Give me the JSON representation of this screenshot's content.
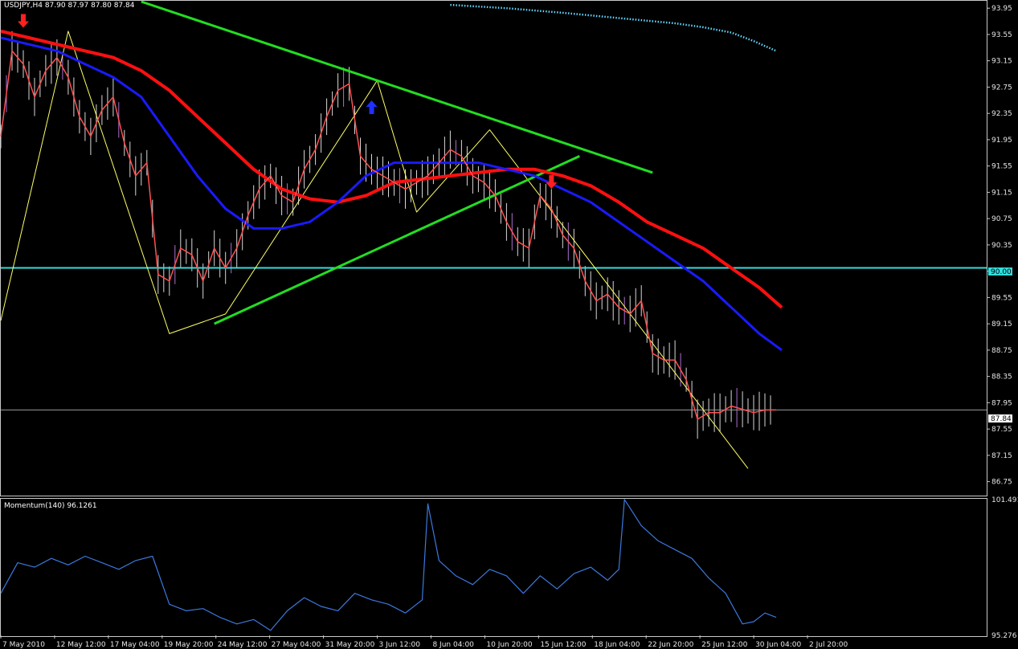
{
  "colors": {
    "background": "#000000",
    "frame": "#c8c8c8",
    "candle": "#d8d8d8",
    "price_line": "#ff5050",
    "ma_fast": "#1a1aff",
    "ma_slow": "#ff1010",
    "trendline": "#22dd22",
    "zigzag": "#ffff66",
    "level": "#33dddd",
    "momentum": "#3c78dc",
    "dotted_envelope": "#5fd7ff",
    "arrow_down": "#ff2020",
    "arrow_up": "#2030ff"
  },
  "chart_data": [
    {
      "type": "line",
      "chart_title": "USDJPY,H4  87.90 87.97 87.80 87.84",
      "ylim": [
        86.55,
        94.05
      ],
      "y_ticks": [
        "93.95",
        "93.55",
        "93.15",
        "92.75",
        "92.35",
        "91.95",
        "91.55",
        "91.15",
        "90.75",
        "90.35",
        "89.95",
        "89.55",
        "89.15",
        "88.75",
        "88.35",
        "87.95",
        "87.55",
        "87.15",
        "86.75"
      ],
      "x_tick_labels": [
        "7 May 2010",
        "12 May 12:00",
        "17 May 04:00",
        "19 May 20:00",
        "24 May 12:00",
        "27 May 04:00",
        "31 May 20:00",
        "3 Jun 12:00",
        "8 Jun 04:00",
        "10 Jun 20:00",
        "15 Jun 12:00",
        "18 Jun 04:00",
        "22 Jun 20:00",
        "25 Jun 12:00",
        "30 Jun 04:00",
        "2 Jul 20:00"
      ],
      "x_index_range": [
        0,
        139
      ],
      "level_label": "90.00",
      "current_label": "87.84",
      "horizontal_levels": [
        90.0,
        87.84
      ],
      "series": [
        {
          "role": "price",
          "x": [
            0,
            2,
            4,
            6,
            8,
            10,
            12,
            14,
            16,
            18,
            20,
            22,
            24,
            26,
            28,
            30,
            32,
            34,
            36,
            38,
            40,
            42,
            44,
            46,
            48,
            50,
            52,
            54,
            56,
            58,
            60,
            62,
            64,
            66,
            68,
            70,
            72,
            74,
            76,
            78,
            80,
            82,
            84,
            86,
            88,
            90,
            92,
            94,
            96,
            98,
            100,
            102,
            104,
            106,
            108,
            110,
            112,
            114,
            116,
            118,
            120,
            122,
            124,
            126,
            128,
            130,
            132,
            134,
            136,
            138
          ],
          "y": [
            92.0,
            93.3,
            93.1,
            92.6,
            93.0,
            93.2,
            92.9,
            92.3,
            92.0,
            92.4,
            92.6,
            91.9,
            91.4,
            91.6,
            89.9,
            89.8,
            90.3,
            90.2,
            89.8,
            90.3,
            90.0,
            90.3,
            90.8,
            91.2,
            91.4,
            91.1,
            91.0,
            91.5,
            91.8,
            92.3,
            92.7,
            92.8,
            91.7,
            91.5,
            91.4,
            91.3,
            91.2,
            91.3,
            91.4,
            91.6,
            91.8,
            91.7,
            91.4,
            91.3,
            91.1,
            90.7,
            90.4,
            90.3,
            91.1,
            90.9,
            90.5,
            90.3,
            89.8,
            89.5,
            89.6,
            89.4,
            89.3,
            89.5,
            88.7,
            88.6,
            88.6,
            88.3,
            87.7,
            87.8,
            87.8,
            87.9,
            87.85,
            87.8,
            87.84,
            87.84
          ]
        },
        {
          "role": "ma_fast",
          "x": [
            0,
            5,
            10,
            15,
            20,
            25,
            30,
            35,
            40,
            45,
            50,
            55,
            60,
            65,
            70,
            75,
            80,
            85,
            90,
            95,
            100,
            105,
            110,
            115,
            120,
            125,
            130,
            135,
            139
          ],
          "y": [
            93.5,
            93.4,
            93.3,
            93.1,
            92.9,
            92.6,
            92.0,
            91.4,
            90.9,
            90.6,
            90.6,
            90.7,
            91.0,
            91.4,
            91.6,
            91.6,
            91.6,
            91.6,
            91.5,
            91.4,
            91.2,
            91.0,
            90.7,
            90.4,
            90.1,
            89.8,
            89.4,
            89.0,
            88.75
          ]
        },
        {
          "role": "ma_slow",
          "x": [
            0,
            5,
            10,
            15,
            20,
            25,
            30,
            35,
            40,
            45,
            50,
            55,
            60,
            65,
            70,
            75,
            80,
            85,
            90,
            95,
            100,
            105,
            110,
            115,
            120,
            125,
            130,
            135,
            139
          ],
          "y": [
            93.6,
            93.5,
            93.4,
            93.3,
            93.2,
            93.0,
            92.7,
            92.3,
            91.9,
            91.5,
            91.2,
            91.05,
            91.0,
            91.1,
            91.3,
            91.35,
            91.4,
            91.45,
            91.5,
            91.5,
            91.4,
            91.25,
            91.0,
            90.7,
            90.5,
            90.3,
            90.0,
            89.7,
            89.4
          ]
        }
      ],
      "zigzag": {
        "x": [
          0,
          12,
          30,
          40,
          67,
          74,
          87,
          133
        ],
        "y": [
          89.2,
          93.6,
          89.0,
          89.3,
          92.85,
          90.85,
          92.1,
          86.95
        ]
      },
      "trendlines": [
        {
          "x": [
            25,
            116
          ],
          "y": [
            94.05,
            91.45
          ]
        },
        {
          "x": [
            38,
            103
          ],
          "y": [
            89.15,
            91.7
          ]
        }
      ],
      "arrows": [
        {
          "x": 4,
          "y": 93.75,
          "dir": "down"
        },
        {
          "x": 66,
          "y": 92.45,
          "dir": "up"
        },
        {
          "x": 98,
          "y": 91.3,
          "dir": "down"
        }
      ],
      "dotted_envelope": {
        "x": [
          80,
          90,
          100,
          110,
          120,
          125,
          130,
          134,
          138
        ],
        "y": [
          94.0,
          93.95,
          93.88,
          93.8,
          93.72,
          93.66,
          93.58,
          93.45,
          93.3
        ]
      }
    },
    {
      "type": "line",
      "chart_title": "Momentum(140) 96.1261",
      "ylim": [
        95.276,
        101.491
      ],
      "y_ticks": [
        "101.491",
        "95.276"
      ],
      "x": [
        0,
        3,
        6,
        9,
        12,
        15,
        18,
        21,
        24,
        27,
        30,
        33,
        36,
        39,
        42,
        45,
        48,
        51,
        54,
        57,
        60,
        63,
        66,
        69,
        72,
        75,
        76,
        78,
        81,
        84,
        87,
        90,
        93,
        96,
        99,
        102,
        105,
        108,
        110,
        111,
        114,
        117,
        120,
        123,
        126,
        129,
        132,
        134,
        136,
        138
      ],
      "values": [
        97.2,
        98.6,
        98.4,
        98.8,
        98.5,
        98.9,
        98.6,
        98.3,
        98.7,
        98.9,
        96.7,
        96.4,
        96.5,
        96.1,
        95.8,
        96.0,
        95.5,
        96.4,
        97.0,
        96.6,
        96.4,
        97.2,
        96.9,
        96.7,
        96.3,
        96.9,
        101.3,
        98.7,
        98.0,
        97.6,
        98.3,
        98.0,
        97.2,
        98.0,
        97.4,
        98.1,
        98.4,
        97.8,
        98.3,
        101.5,
        100.3,
        99.6,
        99.2,
        98.8,
        97.9,
        97.2,
        95.8,
        95.9,
        96.3,
        96.1
      ]
    }
  ]
}
